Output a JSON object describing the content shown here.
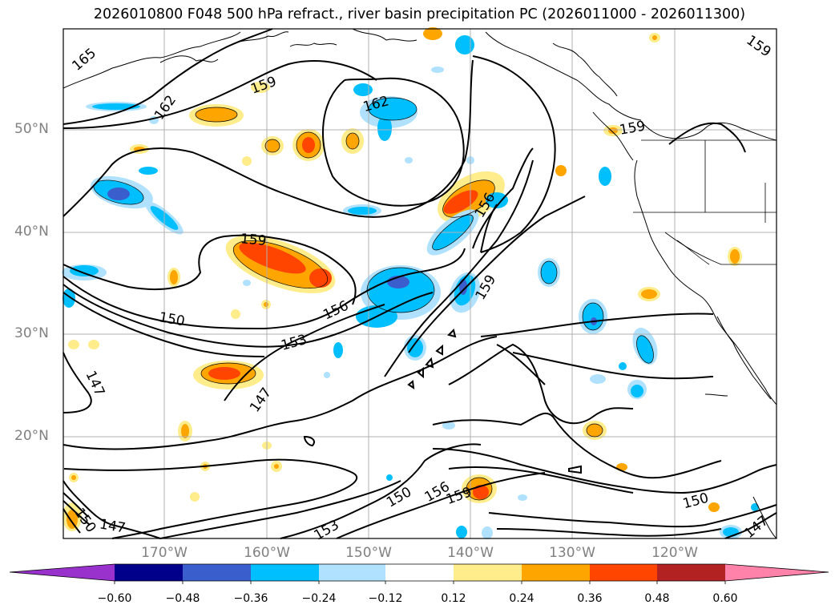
{
  "title": "2026010800 F048 500 hPa refract., river basin precipitation PC (2026011000 - 2026011300)",
  "lat_labels": [
    "50°N",
    "40°N",
    "30°N",
    "20°N"
  ],
  "lon_labels": [
    "170°W",
    "160°W",
    "150°W",
    "140°W",
    "130°W",
    "120°W"
  ],
  "contour_labels": [
    "165",
    "162",
    "159",
    "162",
    "159",
    "159",
    "159",
    "156",
    "156",
    "150",
    "153",
    "147",
    "147",
    "159",
    "150",
    "156",
    "153",
    "159",
    "150",
    "147",
    "147",
    "150"
  ],
  "colorbar": {
    "ticks": [
      "−0.60",
      "−0.48",
      "−0.36",
      "−0.24",
      "−0.12",
      "0.12",
      "0.24",
      "0.36",
      "0.48",
      "0.60"
    ],
    "colors": [
      "#9932cc",
      "#00008b",
      "#3a5fcd",
      "#00bfff",
      "#b0e2ff",
      "#ffffff",
      "#ffec8b",
      "#ffa500",
      "#ff4500",
      "#b22222",
      "#ff82ab"
    ]
  }
}
